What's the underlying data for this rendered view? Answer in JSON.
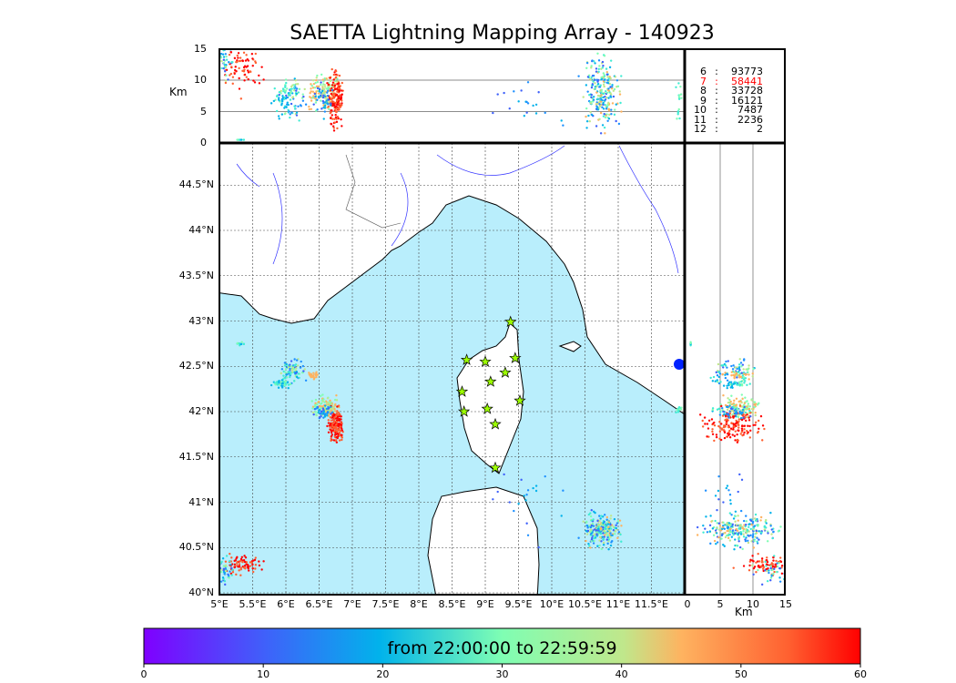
{
  "title": "SAETTA Lightning Mapping Array - 140923",
  "chart_data": {
    "type": "scatter",
    "title": "SAETTA Lightning Mapping Array - 140923",
    "map": {
      "lon_range": [
        5,
        12
      ],
      "lat_range": [
        40,
        44.95
      ],
      "lon_ticks": [
        "5°E",
        "5.5°E",
        "6°E",
        "6.5°E",
        "7°E",
        "7.5°E",
        "8°E",
        "8.5°E",
        "9°E",
        "9.5°E",
        "10°E",
        "10.5°E",
        "11°E",
        "11.5°E"
      ],
      "lat_ticks": [
        "40°N",
        "40.5°N",
        "41°N",
        "41.5°N",
        "42°N",
        "42.5°N",
        "43°N",
        "43.5°N",
        "44°N",
        "44.5°N"
      ],
      "grid": true
    },
    "altitude_panel": {
      "ylabel": "Km",
      "ylim": [
        0,
        15
      ],
      "ticks": [
        "0",
        "5",
        "10",
        "15"
      ]
    },
    "right_panel": {
      "xlabel": "Km",
      "xlim": [
        0,
        15
      ],
      "ticks": [
        "0",
        "5",
        "10",
        "15"
      ]
    },
    "stations_count_table": [
      {
        "stations": "6",
        "sep": ":",
        "count": "93773",
        "color": "#000000"
      },
      {
        "stations": "7",
        "sep": ":",
        "count": "58441",
        "color": "#ff0000"
      },
      {
        "stations": "8",
        "sep": ":",
        "count": "33728",
        "color": "#000000"
      },
      {
        "stations": "9",
        "sep": ":",
        "count": "16121",
        "color": "#000000"
      },
      {
        "stations": "10",
        "sep": ":",
        "count": "7487",
        "color": "#000000"
      },
      {
        "stations": "11",
        "sep": ":",
        "count": "2236",
        "color": "#000000"
      },
      {
        "stations": "12",
        "sep": ":",
        "count": "2",
        "color": "#000000"
      }
    ],
    "colorbar": {
      "label": "from 22:00:00 to 22:59:59",
      "range": [
        0,
        60
      ],
      "ticks": [
        "0",
        "10",
        "20",
        "30",
        "40",
        "50",
        "60"
      ],
      "colormap": "rainbow"
    },
    "colors": {
      "sea": "#b9eefc",
      "station": "#9cff00"
    }
  }
}
